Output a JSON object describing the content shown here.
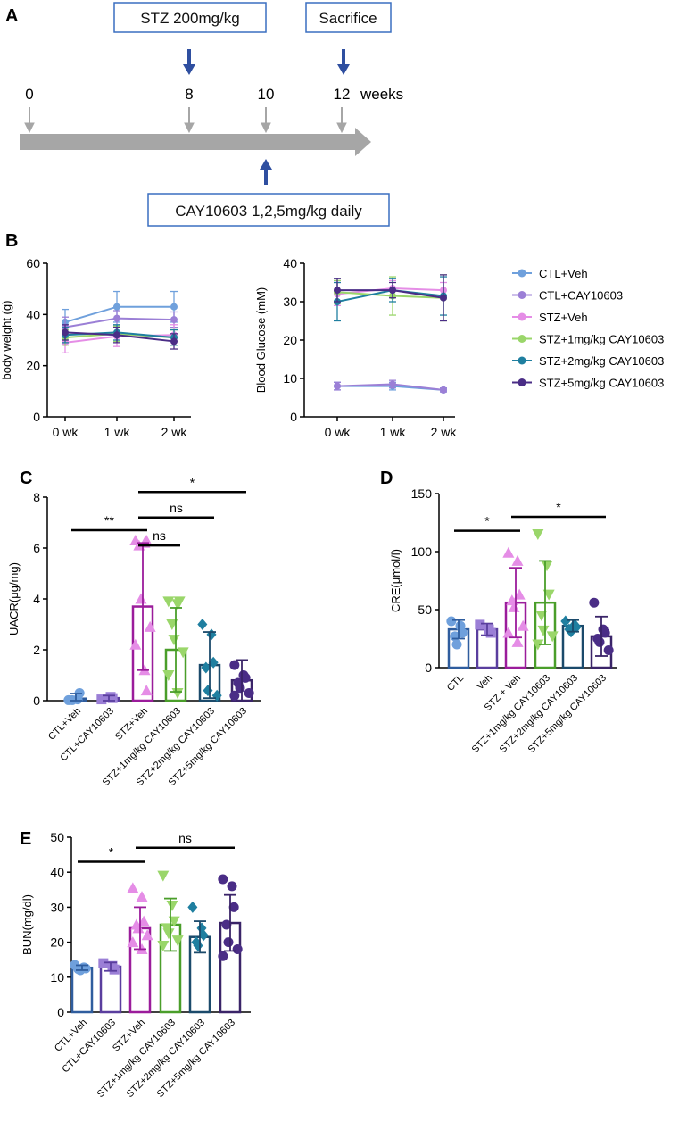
{
  "colors": {
    "ctl_veh": "#6fa0dc",
    "ctl_cay": "#9b7fd6",
    "stz_veh": "#e58de6",
    "stz_1": "#9ad66a",
    "stz_2": "#1f7fa0",
    "stz_5": "#4a2d86",
    "bar_ctl_veh": "#2f5d9e",
    "bar_ctl_cay": "#5a3e9e",
    "bar_stz_veh": "#9b1c9b",
    "bar_stz_1": "#4a9e2a",
    "bar_stz_2": "#1b4a6b",
    "bar_stz_5": "#3a2468",
    "timeline_box": "#3a6fc0",
    "timeline_arrow_blue": "#2f4fa0",
    "timeline_bar": "#a6a6a6"
  },
  "panels": {
    "A": "A",
    "B": "B",
    "C": "C",
    "D": "D",
    "E": "E"
  },
  "timeline": {
    "stz_label": "STZ 200mg/kg",
    "sacrifice_label": "Sacrifice",
    "cay_label": "CAY10603 1,2,5mg/kg daily",
    "ticks": [
      "0",
      "8",
      "10",
      "12"
    ],
    "weeks_label": "weeks"
  },
  "legend": [
    {
      "label": "CTL+Veh",
      "color_key": "ctl_veh"
    },
    {
      "label": "CTL+CAY10603",
      "color_key": "ctl_cay"
    },
    {
      "label": "STZ+Veh",
      "color_key": "stz_veh"
    },
    {
      "label": "STZ+1mg/kg CAY10603",
      "color_key": "stz_1"
    },
    {
      "label": "STZ+2mg/kg CAY10603",
      "color_key": "stz_2"
    },
    {
      "label": "STZ+5mg/kg CAY10603",
      "color_key": "stz_5"
    }
  ],
  "chart_data": [
    {
      "id": "body-weight",
      "type": "line",
      "ylabel": "body weight (g)",
      "xlabel": "",
      "categories": [
        "0 wk",
        "1 wk",
        "2 wk"
      ],
      "ylim": [
        0,
        60
      ],
      "yticks": [
        0,
        20,
        40,
        60
      ],
      "series": [
        {
          "name": "CTL+Veh",
          "color_key": "ctl_veh",
          "values": [
            37,
            43,
            43
          ],
          "err": [
            5,
            6,
            6
          ]
        },
        {
          "name": "CTL+CAY10603",
          "color_key": "ctl_cay",
          "values": [
            35,
            38.5,
            38
          ],
          "err": [
            4,
            3,
            3
          ]
        },
        {
          "name": "STZ+Veh",
          "color_key": "stz_veh",
          "values": [
            29,
            31.5,
            32
          ],
          "err": [
            4,
            4,
            4
          ]
        },
        {
          "name": "STZ+1mg/kg CAY10603",
          "color_key": "stz_1",
          "values": [
            31,
            32.5,
            31
          ],
          "err": [
            3,
            3,
            3
          ]
        },
        {
          "name": "STZ+2mg/kg CAY10603",
          "color_key": "stz_2",
          "values": [
            32,
            33,
            31
          ],
          "err": [
            3,
            3,
            3
          ]
        },
        {
          "name": "STZ+5mg/kg CAY10603",
          "color_key": "stz_5",
          "values": [
            33,
            32,
            29.5
          ],
          "err": [
            3,
            3,
            3
          ]
        }
      ]
    },
    {
      "id": "blood-glucose",
      "type": "line",
      "ylabel": "Blood Glucose (mM)",
      "xlabel": "",
      "categories": [
        "0 wk",
        "1 wk",
        "2 wk"
      ],
      "ylim": [
        0,
        40
      ],
      "yticks": [
        0,
        10,
        20,
        30,
        40
      ],
      "series": [
        {
          "name": "CTL+Veh",
          "color_key": "ctl_veh",
          "values": [
            8,
            8,
            7
          ],
          "err": [
            1,
            1,
            0.5
          ]
        },
        {
          "name": "CTL+CAY10603",
          "color_key": "ctl_cay",
          "values": [
            8,
            8.5,
            7
          ],
          "err": [
            1,
            1,
            0.5
          ]
        },
        {
          "name": "STZ+Veh",
          "color_key": "stz_veh",
          "values": [
            32,
            33.5,
            33
          ],
          "err": [
            3,
            2,
            2
          ]
        },
        {
          "name": "STZ+1mg/kg CAY10603",
          "color_key": "stz_1",
          "values": [
            32.5,
            31.5,
            31
          ],
          "err": [
            3,
            5,
            6
          ]
        },
        {
          "name": "STZ+2mg/kg CAY10603",
          "color_key": "stz_2",
          "values": [
            30,
            33,
            31.5
          ],
          "err": [
            5,
            3,
            5
          ]
        },
        {
          "name": "STZ+5mg/kg CAY10603",
          "color_key": "stz_5",
          "values": [
            33,
            33,
            31
          ],
          "err": [
            3,
            2,
            6
          ]
        }
      ]
    },
    {
      "id": "uacr",
      "type": "bar",
      "ylabel": "UACR(μg/mg)",
      "xlabel": "",
      "categories": [
        "CTL+Veh",
        "CTL+CAY10603",
        "STZ+Veh",
        "STZ+1mg/kg CAY10603",
        "STZ+2mg/kg CAY10603",
        "STZ+5mg/kg CAY10603"
      ],
      "ylim": [
        0,
        8
      ],
      "yticks": [
        0,
        2,
        4,
        6,
        8
      ],
      "values": [
        0.08,
        0.1,
        3.7,
        2.0,
        1.4,
        0.8
      ],
      "err": [
        0.2,
        0.1,
        2.5,
        1.65,
        1.3,
        0.8
      ],
      "markers": [
        "circle",
        "square",
        "triangle",
        "triangle-down",
        "diamond",
        "circle"
      ],
      "points": [
        [
          0.02,
          0.05,
          0.3,
          0.02
        ],
        [
          0.05,
          0.15,
          0.1
        ],
        [
          6.3,
          6.2,
          6.3,
          6.1,
          4.0,
          2.9,
          2.2,
          1.2,
          0.4
        ],
        [
          3.9,
          3.8,
          3.9,
          3.0,
          2.4,
          1.9,
          1.0,
          0.3
        ],
        [
          3.0,
          2.6,
          1.5,
          1.3,
          0.4,
          0.2
        ],
        [
          1.4,
          1.0,
          0.9,
          0.7,
          0.5,
          0.3,
          0.2
        ]
      ],
      "significance": [
        {
          "from": 0,
          "to": 2,
          "label": "**",
          "y": 6.7
        },
        {
          "from": 2,
          "to": 3,
          "label": "ns",
          "y": 6.1
        },
        {
          "from": 2,
          "to": 4,
          "label": "ns",
          "y": 7.2
        },
        {
          "from": 2,
          "to": 5,
          "label": "*",
          "y": 8.2
        }
      ]
    },
    {
      "id": "cre",
      "type": "bar",
      "ylabel": "CRE(μmol/l)",
      "xlabel": "",
      "categories": [
        "CTL",
        "Veh",
        "STZ + Veh",
        "STZ+1mg/kg CAY10603",
        "STZ+2mg/kg CAY10603",
        "STZ+5mg/kg CAY10603"
      ],
      "ylim": [
        0,
        150
      ],
      "yticks": [
        0,
        50,
        100,
        150
      ],
      "values": [
        33,
        33,
        56,
        56,
        36,
        27
      ],
      "err": [
        8,
        5,
        30,
        36,
        5,
        17
      ],
      "markers": [
        "circle",
        "square",
        "triangle",
        "triangle-down",
        "diamond",
        "circle"
      ],
      "points": [
        [
          40,
          36,
          30,
          27,
          20
        ],
        [
          37,
          33,
          30
        ],
        [
          99,
          92,
          63,
          58,
          52,
          36,
          30,
          22
        ],
        [
          115,
          88,
          63,
          45,
          32,
          27,
          20
        ],
        [
          40,
          37,
          35,
          33,
          31
        ],
        [
          56,
          33,
          30,
          25,
          22,
          15
        ]
      ],
      "significance": [
        {
          "from": 0,
          "to": 2,
          "label": "*",
          "y": 118
        },
        {
          "from": 2,
          "to": 5,
          "label": "*",
          "y": 130
        }
      ]
    },
    {
      "id": "bun",
      "type": "bar",
      "ylabel": "BUN(mg/dl)",
      "xlabel": "",
      "categories": [
        "CTL+Veh",
        "CTL+CAY10603",
        "STZ+Veh",
        "STZ+1mg/kg CAY10603",
        "STZ+2mg/kg CAY10603",
        "STZ+5mg/kg CAY10603"
      ],
      "ylim": [
        0,
        50
      ],
      "yticks": [
        0,
        10,
        20,
        30,
        40,
        50
      ],
      "values": [
        12.7,
        13,
        24,
        25,
        21.5,
        25.5
      ],
      "err": [
        0.7,
        1.2,
        6,
        7.5,
        4.5,
        8
      ],
      "markers": [
        "circle",
        "square",
        "triangle",
        "triangle-down",
        "diamond",
        "circle"
      ],
      "points": [
        [
          13.5,
          12.8,
          12.5,
          12.3,
          12.0
        ],
        [
          14.0,
          13.2,
          12.2
        ],
        [
          35.5,
          33.0,
          26.0,
          25.0,
          24.0,
          22.0,
          20.0,
          18.0
        ],
        [
          39.0,
          30.5,
          26.0,
          24.0,
          22.5,
          20.5,
          19.0
        ],
        [
          30.0,
          24.0,
          22.0,
          20.0,
          19.0
        ],
        [
          38.0,
          36.0,
          30.0,
          25.0,
          20.0,
          18.0,
          16.0
        ]
      ],
      "significance": [
        {
          "from": 0,
          "to": 2,
          "label": "*",
          "y": 43
        },
        {
          "from": 2,
          "to": 5,
          "label": "ns",
          "y": 47
        }
      ]
    }
  ]
}
